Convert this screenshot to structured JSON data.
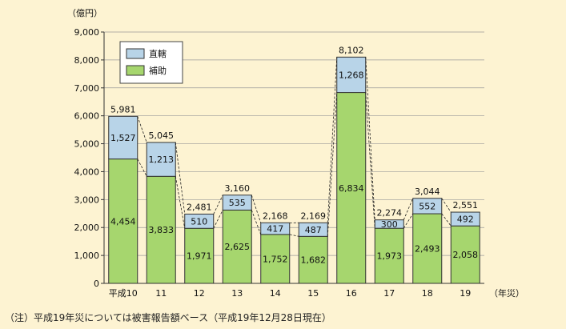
{
  "colors": {
    "background": "#fdf3d2",
    "direct": "#b8d4e8",
    "subsidy": "#a6d66e",
    "border": "#333333",
    "grid": "#999999"
  },
  "chart_data": {
    "type": "bar",
    "stacked": true,
    "unit": "（億円）",
    "x_unit": "（年災）",
    "categories": [
      "平成10",
      "11",
      "12",
      "13",
      "14",
      "15",
      "16",
      "17",
      "18",
      "19"
    ],
    "series": [
      {
        "name": "補助",
        "key": "subsidy",
        "values": [
          4454,
          3833,
          1971,
          2625,
          1752,
          1682,
          6834,
          1973,
          2493,
          2058
        ],
        "labels": [
          "4,454",
          "3,833",
          "1,971",
          "2,625",
          "1,752",
          "1,682",
          "6,834",
          "1,973",
          "2,493",
          "2,058"
        ]
      },
      {
        "name": "直轄",
        "key": "direct",
        "values": [
          1527,
          1213,
          510,
          535,
          417,
          487,
          1268,
          300,
          552,
          492
        ],
        "labels": [
          "1,527",
          "1,213",
          "510",
          "535",
          "417",
          "487",
          "1,268",
          "300",
          "552",
          "492"
        ]
      }
    ],
    "totals": [
      5981,
      5045,
      2481,
      3160,
      2168,
      2169,
      8102,
      2274,
      3044,
      2551
    ],
    "total_labels": [
      "5,981",
      "5,045",
      "2,481",
      "3,160",
      "2,168",
      "2,169",
      "8,102",
      "2,274",
      "3,044",
      "2,551"
    ],
    "ylim": [
      0,
      9000
    ],
    "yticks": [
      0,
      1000,
      2000,
      3000,
      4000,
      5000,
      6000,
      7000,
      8000,
      9000
    ],
    "ytick_labels": [
      "0",
      "1,000",
      "2,000",
      "3,000",
      "4,000",
      "5,000",
      "6,000",
      "7,000",
      "8,000",
      "9,000"
    ],
    "grid": true,
    "legend": {
      "placement": "top-left",
      "entries": [
        "直轄",
        "補助"
      ]
    },
    "connector_lines": "dashed"
  },
  "note": "（注）平成19年災については被害報告額ベース（平成19年12月28日現在）"
}
